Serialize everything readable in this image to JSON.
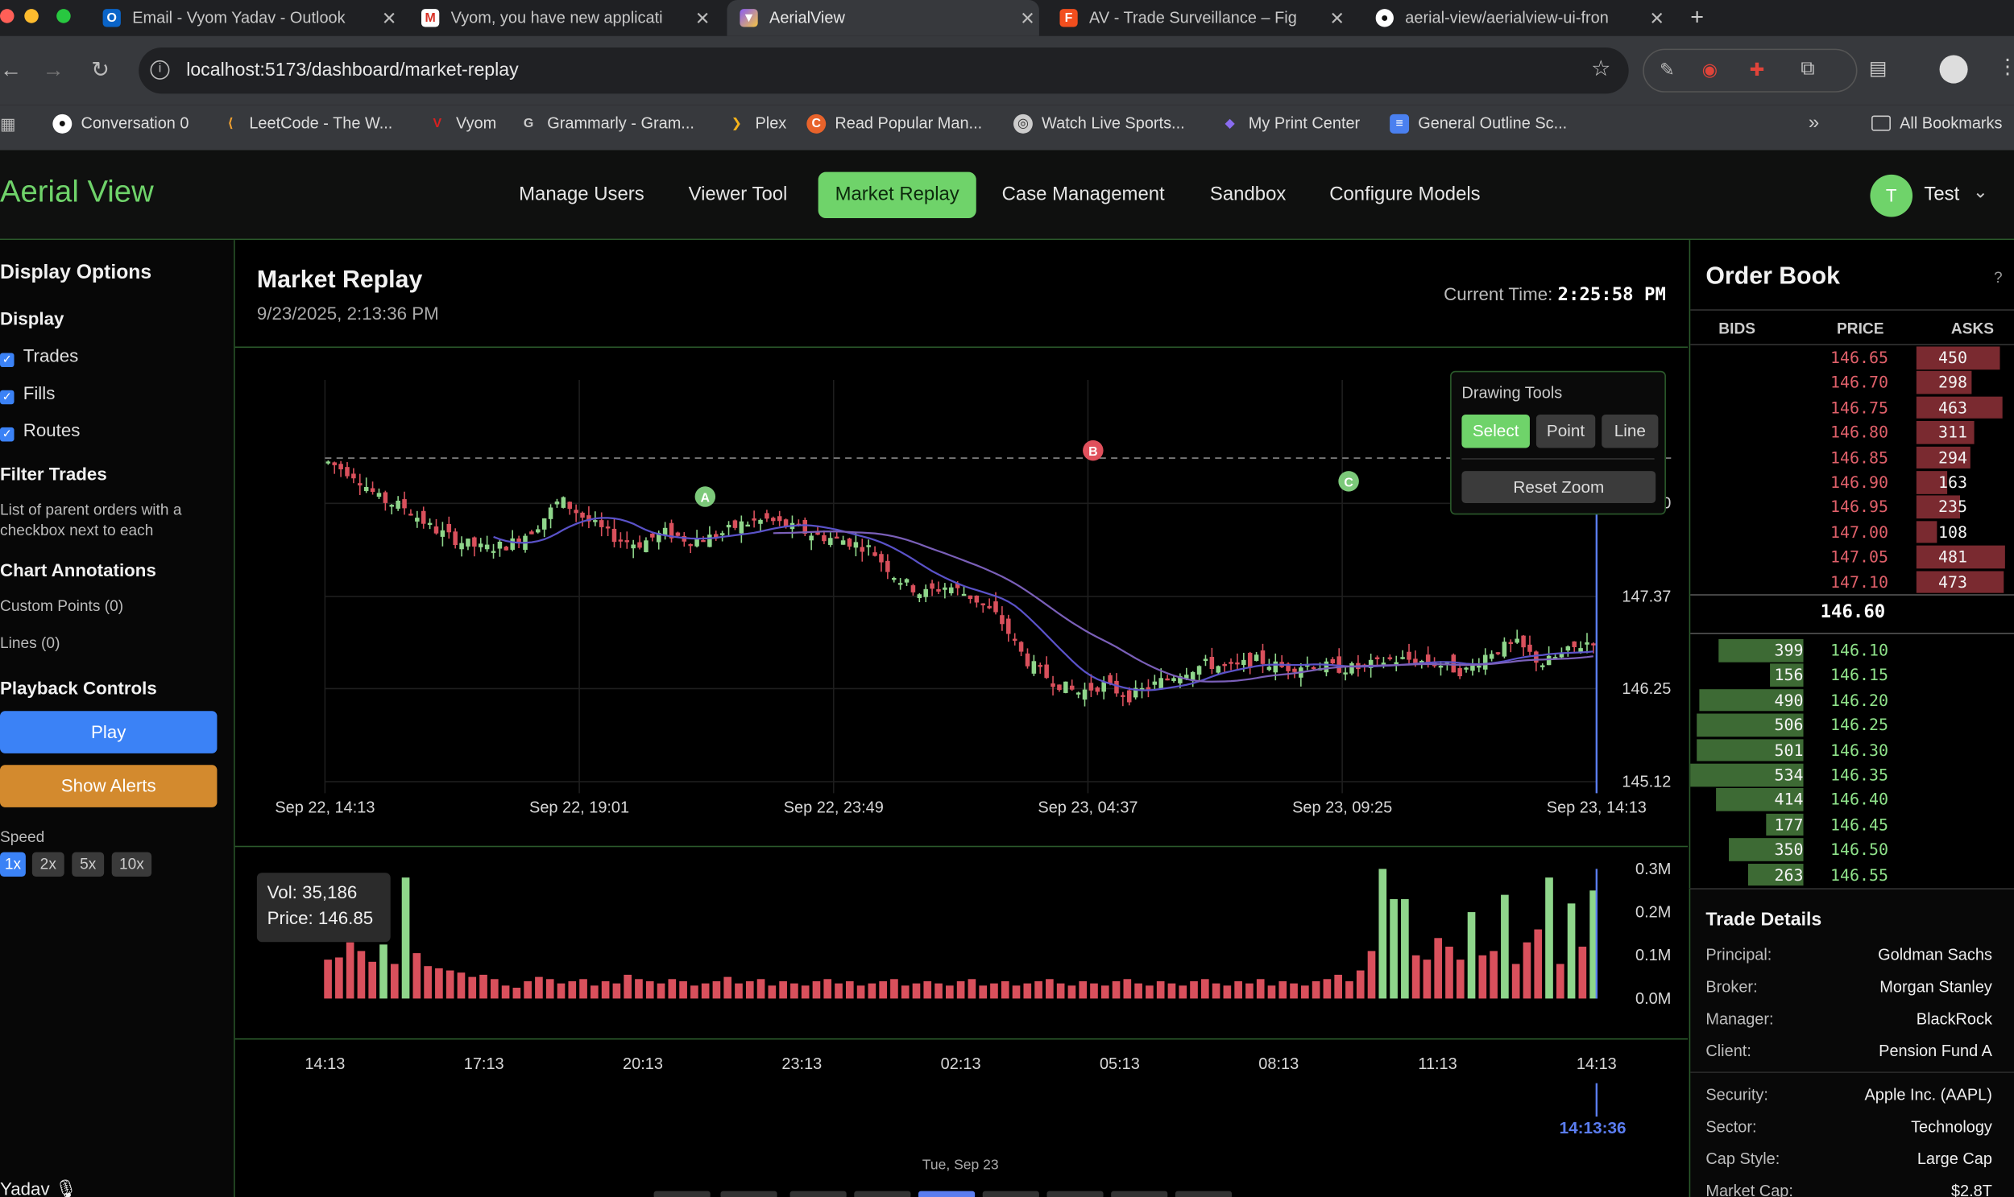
{
  "browser": {
    "tabs": [
      {
        "title": "Email - Vyom Yadav - Outlook",
        "icon": "outlook-icon"
      },
      {
        "title": "Vyom, you have new applicati",
        "icon": "gmail-icon"
      },
      {
        "title": "AerialView",
        "icon": "vite-icon",
        "active": true
      },
      {
        "title": "AV - Trade Surveillance – Fig",
        "icon": "figma-icon"
      },
      {
        "title": "aerial-view/aerialview-ui-fron",
        "icon": "github-icon"
      }
    ],
    "new_tab": "+",
    "url": "localhost:5173/dashboard/market-replay",
    "bookmarks": [
      {
        "label": "Conversation 0",
        "icon": "github-icon"
      },
      {
        "label": "LeetCode - The W...",
        "icon": "leetcode-icon"
      },
      {
        "label": "Vyom",
        "icon": "vyom-icon"
      },
      {
        "label": "Grammarly - Gram...",
        "icon": "grammarly-icon"
      },
      {
        "label": "Plex",
        "icon": "plex-icon"
      },
      {
        "label": "Read Popular Man...",
        "icon": "manga-icon"
      },
      {
        "label": "Watch Live Sports...",
        "icon": "sports-icon"
      },
      {
        "label": "My Print Center",
        "icon": "print-icon"
      },
      {
        "label": "General Outline Sc...",
        "icon": "docs-icon"
      }
    ],
    "all_bookmarks": "All Bookmarks"
  },
  "app": {
    "brand": "Aerial View",
    "nav": [
      "Manage Users",
      "Viewer Tool",
      "Market Replay",
      "Case Management",
      "Sandbox",
      "Configure Models"
    ],
    "active_nav": "Market Replay",
    "user": {
      "initial": "T",
      "name": "Test"
    }
  },
  "sidebar": {
    "display_options": "Display Options",
    "display": "Display",
    "checkboxes": [
      "Trades",
      "Fills",
      "Routes"
    ],
    "filter_trades": "Filter Trades",
    "filter_desc_1": "List of parent orders with a",
    "filter_desc_2": "checkbox next to each",
    "chart_annotations": "Chart Annotations",
    "custom_points": "Custom Points (0)",
    "lines": "Lines (0)",
    "playback_controls": "Playback Controls",
    "play": "Play",
    "show_alerts": "Show Alerts",
    "speed_label": "Speed",
    "speeds": [
      "1x",
      "2x",
      "5x",
      "10x"
    ],
    "active_speed": "1x",
    "footer_name": "Yadav"
  },
  "main": {
    "title": "Market Replay",
    "date": "9/23/2025, 2:13:36 PM",
    "current_time_label": "Current Time:",
    "current_time": "2:25:58 PM"
  },
  "drawing_tools": {
    "title": "Drawing Tools",
    "buttons": [
      "Select",
      "Point",
      "Line"
    ],
    "active": "Select",
    "reset_zoom": "Reset Zoom"
  },
  "chart_data": [
    {
      "type": "candlestick",
      "x_tick_labels": [
        "Sep 22, 14:13",
        "Sep 22, 19:01",
        "Sep 22, 23:49",
        "Sep 23, 04:37",
        "Sep 23, 09:25",
        "Sep 23, 14:13"
      ],
      "y_tick_labels": [
        "148.50",
        "147.37",
        "146.25",
        "145.12"
      ],
      "y_ticks": [
        148.5,
        147.37,
        146.25,
        145.12
      ],
      "ylim": [
        144.98,
        150.0
      ],
      "reference_price": 149.05,
      "close_approx": [
        149.0,
        148.85,
        148.55,
        148.45,
        148.2,
        148.05,
        147.95,
        148.0,
        148.2,
        148.55,
        148.3,
        148.1,
        148.0,
        148.15,
        148.05,
        148.1,
        148.25,
        148.3,
        148.2,
        148.1,
        148.05,
        147.95,
        147.6,
        147.4,
        147.5,
        147.35,
        147.1,
        146.6,
        146.35,
        146.2,
        146.3,
        146.15,
        146.3,
        146.45,
        146.55,
        146.5,
        146.6,
        146.5,
        146.55,
        146.5,
        146.5,
        146.6,
        146.6,
        146.55,
        146.45,
        146.7,
        146.8,
        146.55,
        146.7,
        146.85
      ],
      "annotations": [
        "A",
        "B",
        "C"
      ]
    },
    {
      "type": "bar",
      "title": "",
      "y_tick_labels": [
        "0.3M",
        "0.2M",
        "0.1M",
        "0.0M"
      ],
      "ylim": [
        0,
        0.3
      ],
      "x_tick_labels": [
        "14:13",
        "17:13",
        "20:13",
        "23:13",
        "02:13",
        "05:13",
        "08:13",
        "11:13",
        "14:13"
      ],
      "volume_k_approx": [
        90,
        95,
        130,
        110,
        85,
        125,
        80,
        280,
        105,
        75,
        70,
        65,
        60,
        50,
        55,
        45,
        30,
        25,
        40,
        50,
        45,
        35,
        40,
        45,
        30,
        40,
        35,
        55,
        45,
        40,
        35,
        45,
        40,
        30,
        35,
        40,
        50,
        35,
        40,
        45,
        30,
        40,
        35,
        30,
        40,
        45,
        35,
        40,
        30,
        35,
        40,
        45,
        30,
        35,
        40,
        35,
        30,
        40,
        45,
        30,
        35,
        40,
        30,
        35,
        40,
        45,
        35,
        30,
        40,
        35,
        30,
        40,
        45,
        35,
        30,
        40,
        35,
        30,
        40,
        45,
        35,
        30,
        40,
        35,
        45,
        30,
        40,
        35,
        30,
        40,
        45,
        55,
        40,
        65,
        110,
        300,
        230,
        230,
        100,
        90,
        140,
        120,
        90,
        200,
        100,
        110,
        240,
        80,
        130,
        160,
        280,
        80,
        220,
        120,
        250
      ],
      "up_bars_k_approx": [
        230,
        110,
        280,
        300,
        220,
        230,
        200,
        240,
        280,
        250
      ],
      "tooltip": {
        "vol": "Vol: 35,186",
        "price": "Price: 146.85"
      }
    }
  ],
  "timeline": {
    "cursor_time": "14:13:36",
    "date": "Tue, Sep 23"
  },
  "order_book": {
    "title": "Order Book",
    "help": "?",
    "headers": [
      "BIDS",
      "PRICE",
      "ASKS"
    ],
    "asks": [
      {
        "price": "146.65",
        "size": "450"
      },
      {
        "price": "146.70",
        "size": "298"
      },
      {
        "price": "146.75",
        "size": "463"
      },
      {
        "price": "146.80",
        "size": "311"
      },
      {
        "price": "146.85",
        "size": "294"
      },
      {
        "price": "146.90",
        "size": "163"
      },
      {
        "price": "146.95",
        "size": "235"
      },
      {
        "price": "147.00",
        "size": "108"
      },
      {
        "price": "147.05",
        "size": "481"
      },
      {
        "price": "147.10",
        "size": "473"
      }
    ],
    "mid": "146.60",
    "bids": [
      {
        "price": "146.10",
        "size": "399"
      },
      {
        "price": "146.15",
        "size": "156"
      },
      {
        "price": "146.20",
        "size": "490"
      },
      {
        "price": "146.25",
        "size": "506"
      },
      {
        "price": "146.30",
        "size": "501"
      },
      {
        "price": "146.35",
        "size": "534"
      },
      {
        "price": "146.40",
        "size": "414"
      },
      {
        "price": "146.45",
        "size": "177"
      },
      {
        "price": "146.50",
        "size": "350"
      },
      {
        "price": "146.55",
        "size": "263"
      }
    ]
  },
  "trade_details": {
    "title": "Trade Details",
    "rows": [
      {
        "label": "Principal:",
        "value": "Goldman Sachs"
      },
      {
        "label": "Broker:",
        "value": "Morgan Stanley"
      },
      {
        "label": "Manager:",
        "value": "BlackRock"
      },
      {
        "label": "Client:",
        "value": "Pension Fund A"
      },
      {
        "label": "Security:",
        "value": "Apple Inc. (AAPL)"
      },
      {
        "label": "Sector:",
        "value": "Technology"
      },
      {
        "label": "Cap Style:",
        "value": "Large Cap"
      },
      {
        "label": "Market Cap:",
        "value": "$2.8T"
      }
    ]
  },
  "colors": {
    "accent": "#6fd36a",
    "up": "#8fd68b",
    "down": "#d9505c",
    "play": "#3b82f6",
    "alerts": "#d38a2e",
    "ma_blue": "#5a52c8",
    "ma_violet": "#7a5fb8"
  }
}
